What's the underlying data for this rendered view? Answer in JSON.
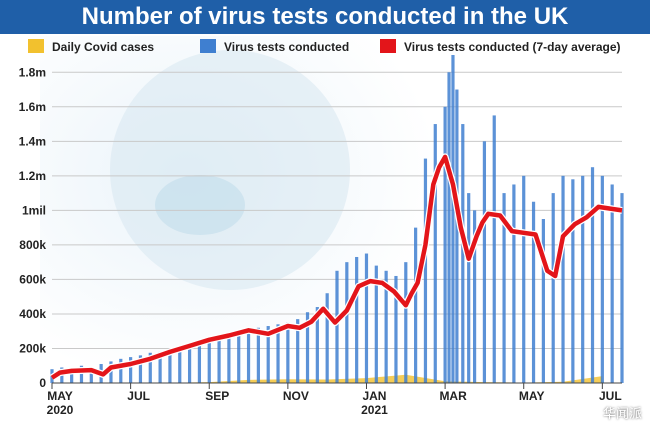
{
  "chart_data": {
    "type": "bar",
    "title": "Number of virus tests conducted in the UK",
    "legend_position": "top",
    "y_ticks": [
      "0",
      "200k",
      "400k",
      "600k",
      "800k",
      "1mil",
      "1.2m",
      "1.4m",
      "1.6m",
      "1.8m"
    ],
    "x_ticks": [
      {
        "label": "MAY",
        "sub": "2020"
      },
      {
        "label": "JUL",
        "sub": ""
      },
      {
        "label": "SEP",
        "sub": ""
      },
      {
        "label": "NOV",
        "sub": ""
      },
      {
        "label": "JAN",
        "sub": "2021"
      },
      {
        "label": "MAR",
        "sub": ""
      },
      {
        "label": "MAY",
        "sub": ""
      },
      {
        "label": "JUL",
        "sub": ""
      }
    ],
    "ylim": [
      0,
      1900000
    ],
    "grid": true,
    "colors": {
      "cases": "#f2c12e",
      "tests": "#3f7fd0",
      "average": "#e3151a",
      "title_bg": "#1f5fa8"
    },
    "series": [
      {
        "name": "Daily Covid cases",
        "months": [
          0,
          1,
          2,
          3,
          4,
          5,
          6,
          7,
          8,
          9,
          10,
          11,
          12,
          13,
          14
        ],
        "values": [
          3000,
          1000,
          700,
          1500,
          5000,
          18000,
          22000,
          20000,
          28000,
          48000,
          10000,
          5000,
          2500,
          7000,
          40000
        ]
      },
      {
        "name": "Virus tests conducted",
        "months": [
          0,
          0.25,
          0.5,
          0.75,
          1,
          1.25,
          1.5,
          1.75,
          2,
          2.25,
          2.5,
          2.75,
          3,
          3.25,
          3.5,
          3.75,
          4,
          4.25,
          4.5,
          4.75,
          5,
          5.25,
          5.5,
          5.75,
          6,
          6.25,
          6.5,
          6.75,
          7,
          7.25,
          7.5,
          7.75,
          8,
          8.25,
          8.5,
          8.75,
          9,
          9.25,
          9.5,
          9.75,
          10,
          10.1,
          10.2,
          10.3,
          10.45,
          10.6,
          10.75,
          11,
          11.25,
          11.5,
          11.75,
          12,
          12.25,
          12.5,
          12.75,
          13,
          13.25,
          13.5,
          13.75,
          14,
          14.25,
          14.5
        ],
        "values": [
          80000,
          90000,
          85000,
          100000,
          90000,
          110000,
          125000,
          140000,
          150000,
          160000,
          175000,
          180000,
          200000,
          210000,
          230000,
          250000,
          260000,
          270000,
          280000,
          300000,
          310000,
          320000,
          330000,
          340000,
          350000,
          370000,
          410000,
          440000,
          520000,
          650000,
          700000,
          730000,
          750000,
          680000,
          650000,
          620000,
          700000,
          900000,
          1300000,
          1500000,
          1600000,
          1800000,
          1900000,
          1700000,
          1500000,
          1100000,
          1000000,
          1400000,
          1550000,
          1100000,
          1150000,
          1200000,
          1050000,
          950000,
          1100000,
          1200000,
          1180000,
          1200000,
          1250000,
          1200000,
          1150000,
          1100000
        ]
      },
      {
        "name": "Virus tests conducted (7-day average)",
        "months": [
          0,
          0.2,
          0.5,
          1,
          1.3,
          1.5,
          2,
          2.5,
          3,
          3.5,
          4,
          4.5,
          5,
          5.5,
          6,
          6.3,
          6.6,
          6.9,
          7.2,
          7.5,
          7.8,
          8.1,
          8.4,
          8.7,
          9,
          9.15,
          9.3,
          9.5,
          9.7,
          9.85,
          10,
          10.2,
          10.4,
          10.6,
          10.8,
          10.95,
          11.1,
          11.4,
          11.7,
          12,
          12.3,
          12.6,
          12.8,
          13,
          13.3,
          13.6,
          13.9,
          14.2,
          14.5
        ],
        "values": [
          30000,
          60000,
          70000,
          75000,
          50000,
          90000,
          110000,
          140000,
          180000,
          215000,
          250000,
          275000,
          305000,
          285000,
          330000,
          320000,
          355000,
          430000,
          350000,
          420000,
          560000,
          590000,
          580000,
          530000,
          450000,
          520000,
          580000,
          800000,
          1150000,
          1250000,
          1310000,
          1150000,
          900000,
          720000,
          850000,
          930000,
          980000,
          970000,
          880000,
          870000,
          860000,
          650000,
          620000,
          850000,
          920000,
          960000,
          1020000,
          1010000,
          1000000
        ]
      }
    ]
  }
}
